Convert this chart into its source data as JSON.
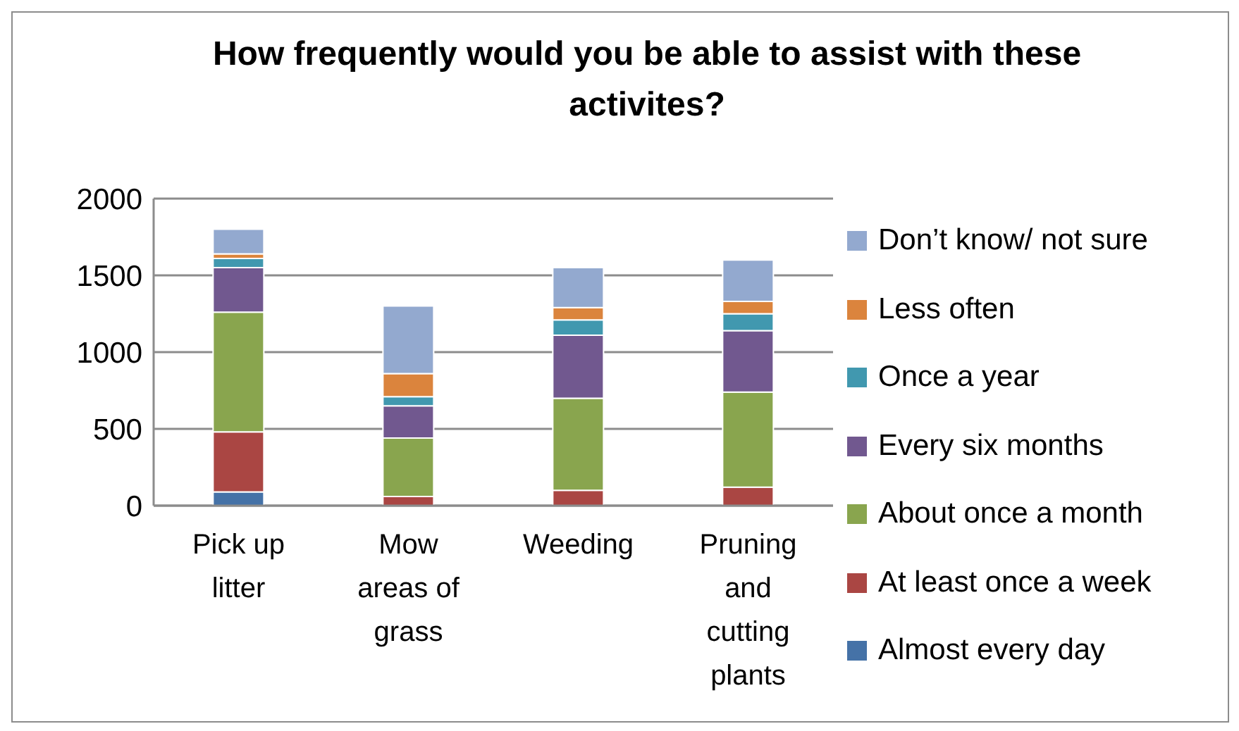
{
  "chart_data": {
    "type": "bar",
    "title": "How frequently would you be able to assist with these activites?",
    "stacked": true,
    "categories": [
      "Pick up litter",
      "Mow areas of grass",
      "Weeding",
      "Pruning and cutting plants"
    ],
    "series": [
      {
        "name": "Almost every day",
        "color": "#4572a7",
        "values": [
          90,
          0,
          0,
          0
        ]
      },
      {
        "name": "At least once a week",
        "color": "#aa4643",
        "values": [
          390,
          60,
          100,
          120
        ]
      },
      {
        "name": "About once a month",
        "color": "#89a54e",
        "values": [
          780,
          380,
          600,
          620
        ]
      },
      {
        "name": "Every six months",
        "color": "#71588f",
        "values": [
          290,
          210,
          410,
          400
        ]
      },
      {
        "name": "Once a year",
        "color": "#4198af",
        "values": [
          60,
          60,
          100,
          110
        ]
      },
      {
        "name": "Less often",
        "color": "#db843d",
        "values": [
          30,
          150,
          80,
          80
        ]
      },
      {
        "name": "Don’t know/ not sure",
        "color": "#93a9cf",
        "values": [
          160,
          440,
          260,
          270
        ]
      }
    ],
    "ylim": [
      0,
      2000
    ],
    "yticks": [
      0,
      500,
      1000,
      1500,
      2000
    ],
    "grid": "y",
    "legend": "right"
  }
}
